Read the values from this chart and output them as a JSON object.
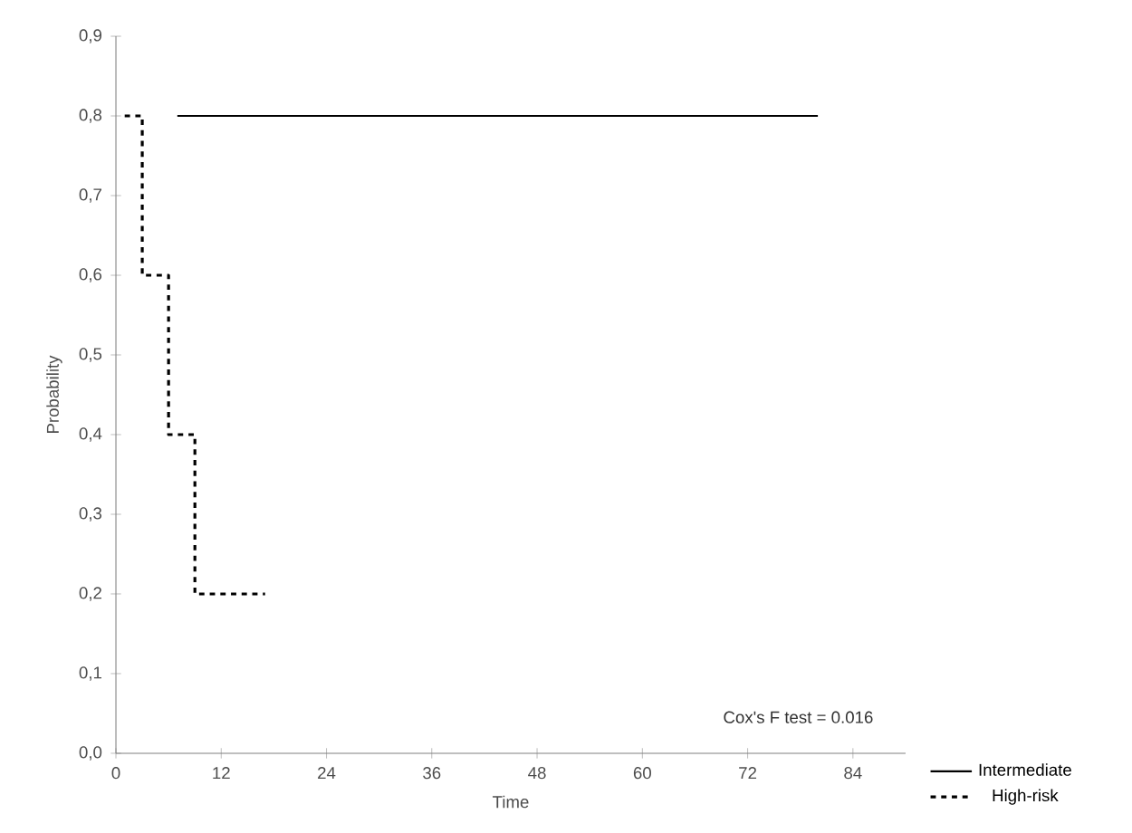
{
  "chart_data": {
    "type": "step",
    "xlabel": "Time",
    "ylabel": "Probability",
    "xlim": [
      0,
      90
    ],
    "ylim": [
      0,
      0.9
    ],
    "xticks": [
      0,
      12,
      24,
      36,
      48,
      60,
      72,
      84
    ],
    "yticks": [
      {
        "value": 0,
        "label": "0,0"
      },
      {
        "value": 0.1,
        "label": "0,1"
      },
      {
        "value": 0.2,
        "label": "0,2"
      },
      {
        "value": 0.3,
        "label": "0,3"
      },
      {
        "value": 0.4,
        "label": "0,4"
      },
      {
        "value": 0.5,
        "label": "0,5"
      },
      {
        "value": 0.6,
        "label": "0,6"
      },
      {
        "value": 0.7,
        "label": "0,7"
      },
      {
        "value": 0.8,
        "label": "0,8"
      },
      {
        "value": 0.9,
        "label": "0,9"
      }
    ],
    "series": [
      {
        "name": "Intermediate",
        "color": "#000000",
        "line_style": "solid",
        "x": [
          7,
          80
        ],
        "values": [
          0.8,
          0.8
        ]
      },
      {
        "name": "High-risk",
        "color": "#000000",
        "line_style": "dotted",
        "x": [
          1,
          3,
          6,
          9,
          17
        ],
        "values": [
          0.8,
          0.6,
          0.4,
          0.2,
          0.2
        ]
      }
    ],
    "annotations": [
      "Cox's F test = 0.016"
    ],
    "legend": "bottom right",
    "grid": false
  }
}
